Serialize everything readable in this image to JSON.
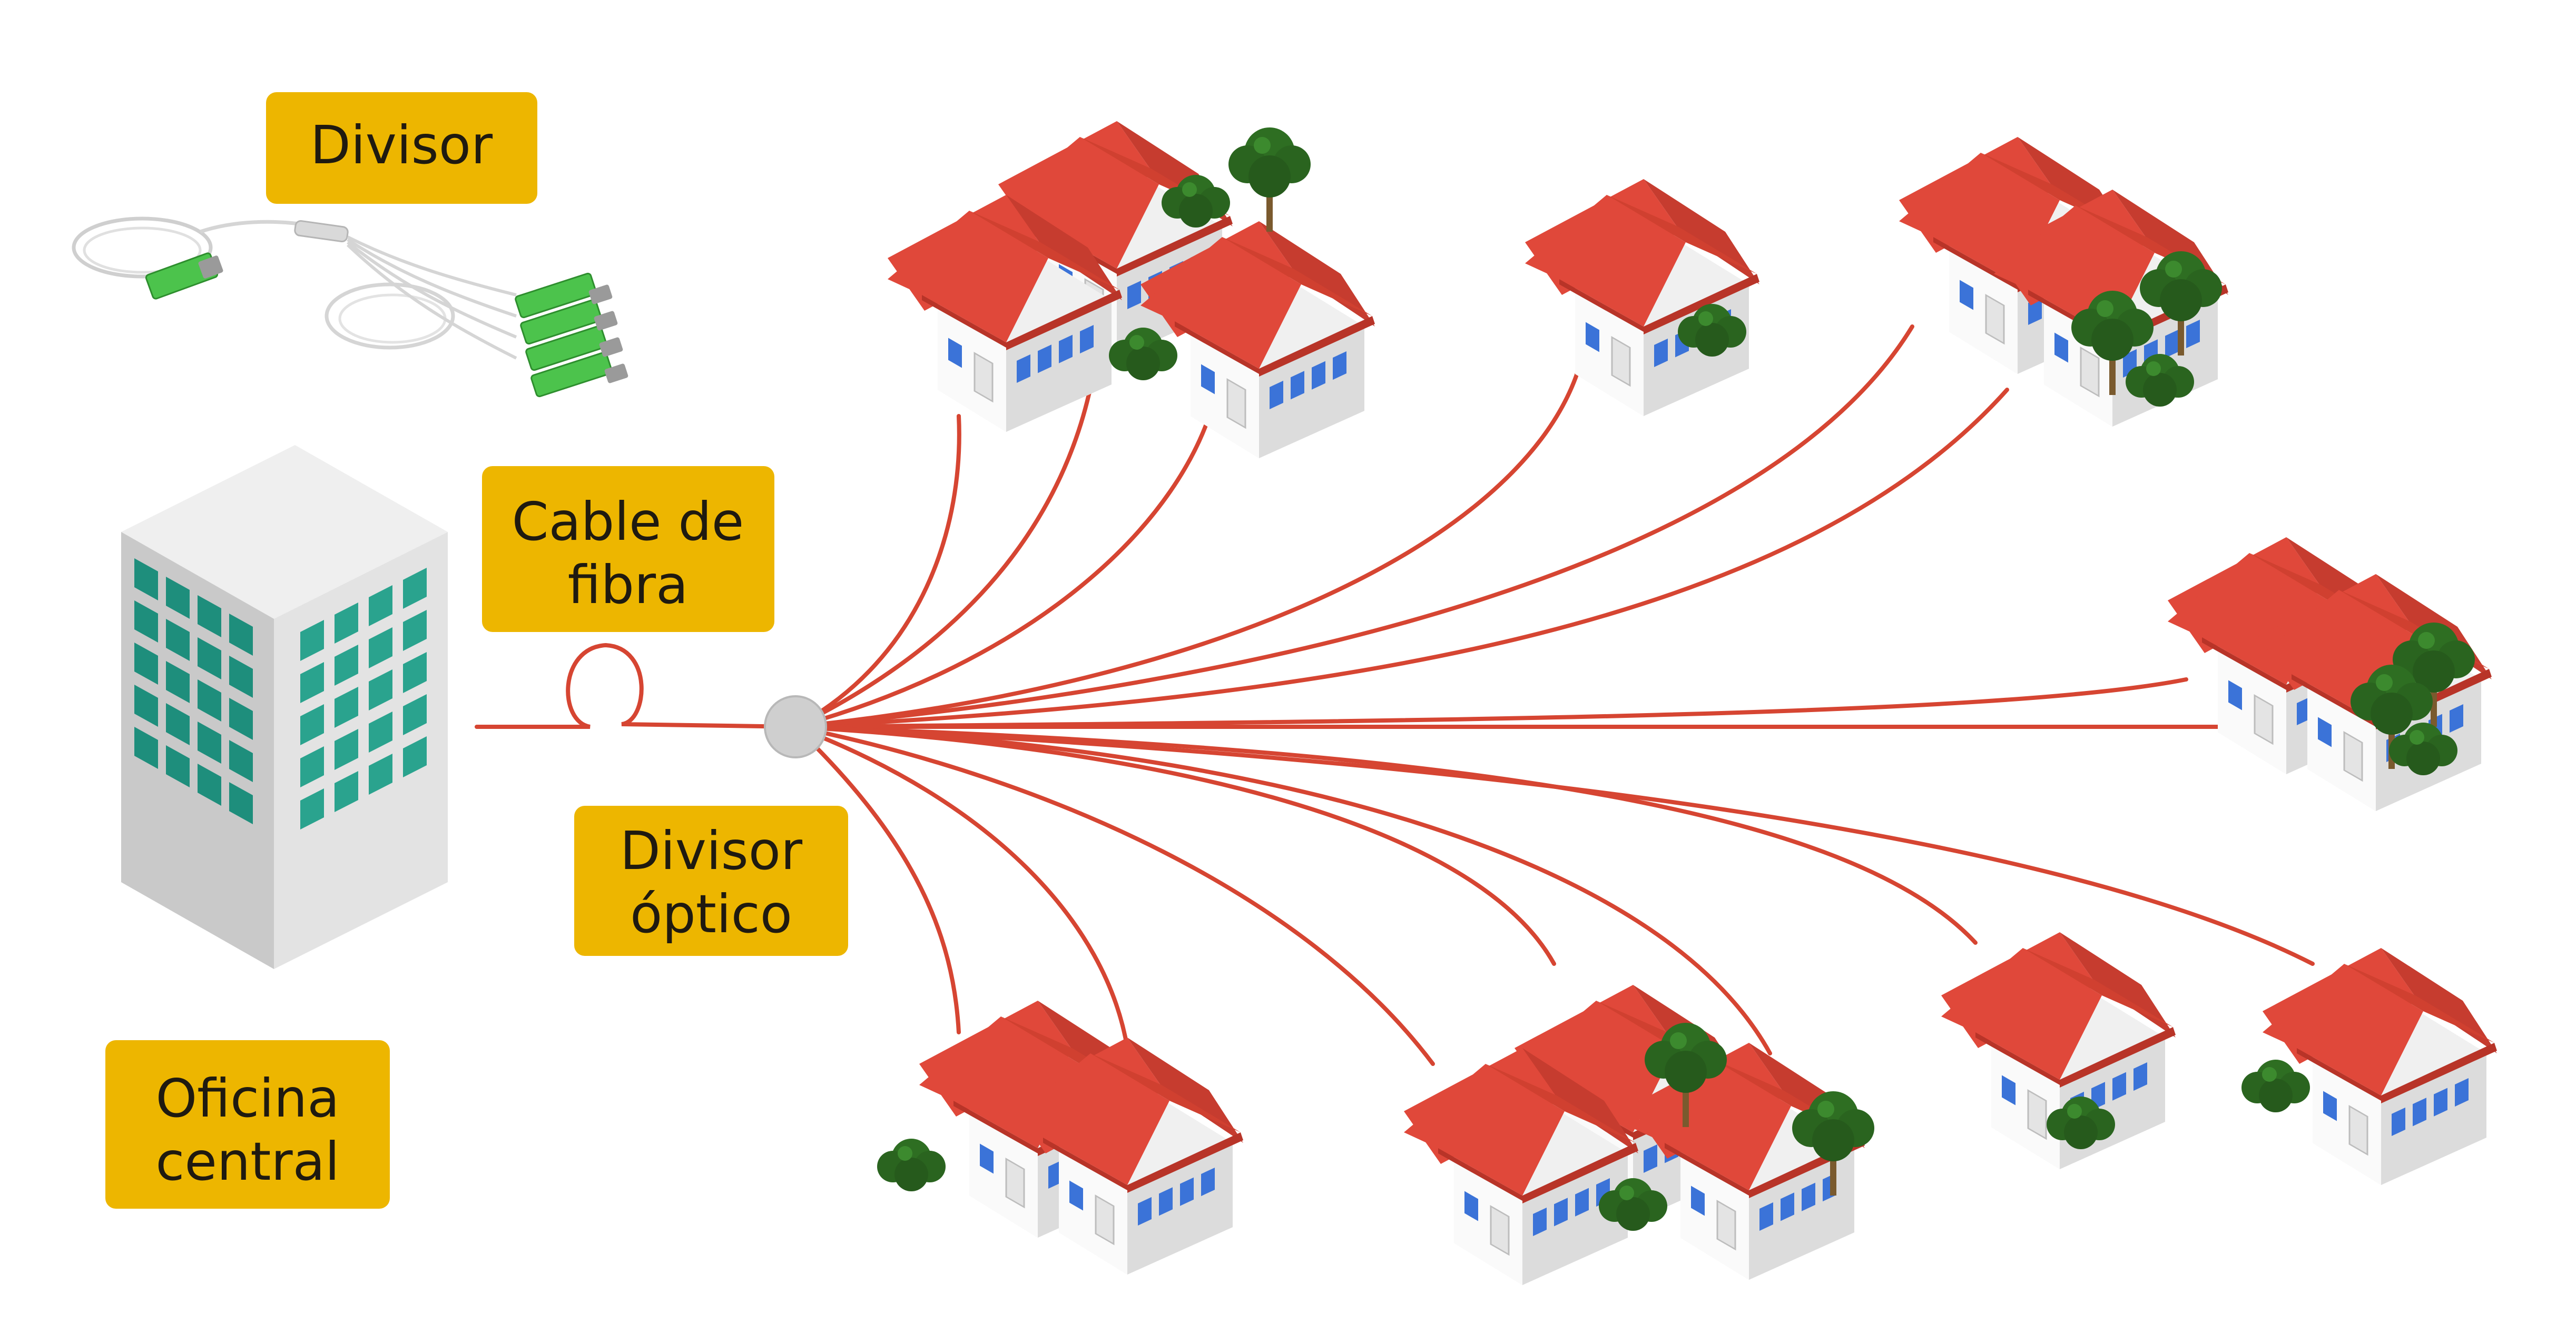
{
  "labels": {
    "splitter_title": "Divisor",
    "fiber_cable_line1": "Cable de",
    "fiber_cable_line2": "fibra",
    "optical_splitter_line1": "Divisor",
    "optical_splitter_line2": "óptico",
    "central_office_line1": "Oficina",
    "central_office_line2": "central"
  },
  "colors": {
    "label_bg": "#EDB600",
    "fiber": "#D64532",
    "roof": "#E0483A",
    "roof_dark": "#B83428",
    "wall": "#F2F2F2",
    "wall_shade": "#D5D5D5",
    "window": "#3B73D8",
    "tree": "#2E6E22",
    "trunk": "#7A5A2E",
    "building_light": "#E6E6E6",
    "building_dark": "#A9A9A9",
    "building_window": "#2AA38E",
    "splitter_node": "#CFCFCF",
    "connector": "#4CC34C"
  },
  "icons": {
    "central_office": "office-building-icon",
    "house": "house-icon",
    "tree": "tree-icon",
    "splitter_device": "plc-splitter-device-icon"
  }
}
